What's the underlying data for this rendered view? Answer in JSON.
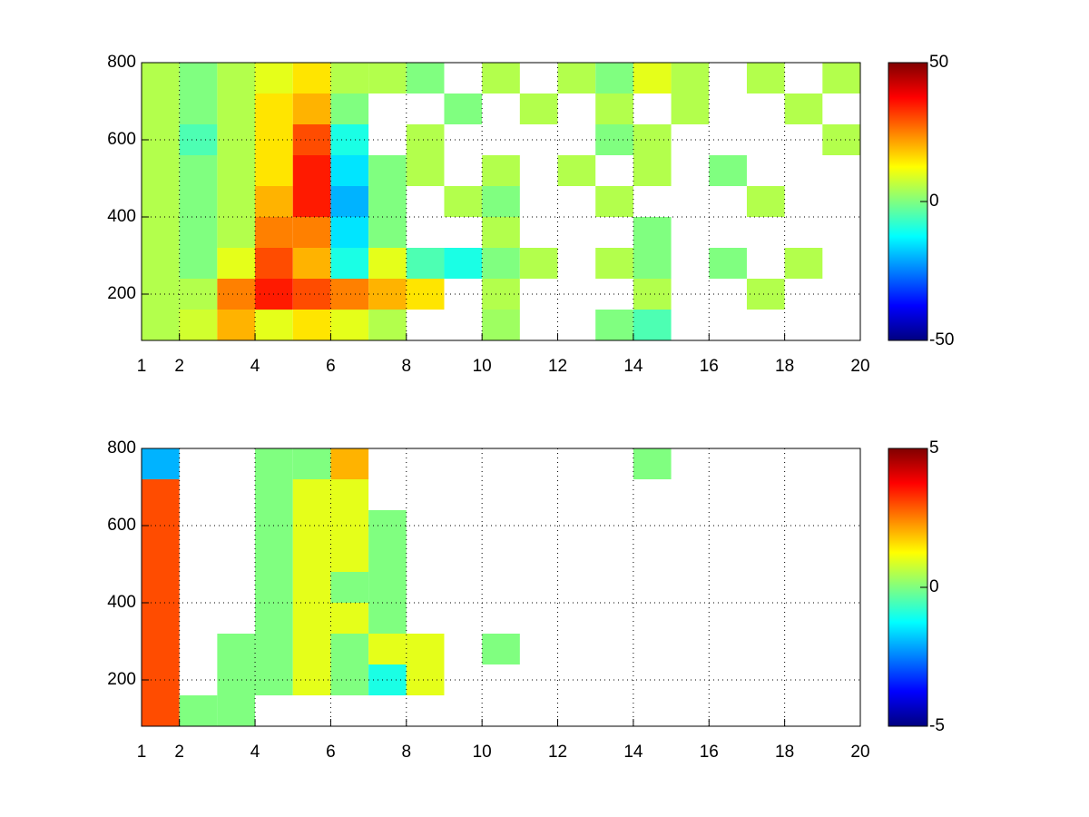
{
  "chart_data": [
    {
      "type": "heatmap",
      "xbins": [
        1,
        2,
        3,
        4,
        5,
        6,
        7,
        8,
        9,
        10,
        11,
        12,
        13,
        14,
        15,
        16,
        17,
        18,
        19,
        20
      ],
      "ybins": [
        80,
        160,
        240,
        320,
        400,
        480,
        560,
        640,
        720,
        800
      ],
      "values": [
        [
          5,
          8,
          20,
          10,
          15,
          10,
          5,
          null,
          null,
          3,
          null,
          null,
          0,
          -5,
          null,
          null,
          null,
          null,
          null
        ],
        [
          5,
          5,
          25,
          35,
          30,
          25,
          20,
          15,
          null,
          5,
          null,
          null,
          null,
          5,
          null,
          null,
          5,
          null,
          null
        ],
        [
          5,
          0,
          10,
          30,
          20,
          -10,
          10,
          -5,
          -10,
          0,
          5,
          null,
          5,
          0,
          null,
          0,
          null,
          5,
          null
        ],
        [
          5,
          0,
          5,
          25,
          25,
          -15,
          0,
          null,
          null,
          5,
          null,
          null,
          null,
          0,
          null,
          null,
          null,
          null,
          null
        ],
        [
          5,
          0,
          5,
          20,
          35,
          -20,
          0,
          null,
          5,
          0,
          null,
          null,
          5,
          null,
          null,
          null,
          5,
          null,
          null
        ],
        [
          5,
          0,
          5,
          15,
          35,
          -15,
          0,
          5,
          null,
          5,
          null,
          5,
          null,
          5,
          null,
          0,
          null,
          null,
          null
        ],
        [
          5,
          -5,
          5,
          15,
          30,
          -10,
          null,
          5,
          null,
          null,
          null,
          null,
          0,
          5,
          null,
          null,
          null,
          null,
          5
        ],
        [
          5,
          0,
          5,
          15,
          20,
          0,
          null,
          null,
          0,
          null,
          5,
          null,
          5,
          null,
          5,
          null,
          null,
          5,
          null
        ],
        [
          5,
          0,
          5,
          10,
          15,
          5,
          5,
          0,
          null,
          5,
          null,
          5,
          0,
          10,
          5,
          null,
          5,
          null,
          5
        ]
      ],
      "xlim": [
        1,
        20
      ],
      "xticks": [
        1,
        2,
        4,
        6,
        8,
        10,
        12,
        14,
        16,
        18,
        20
      ],
      "ylim": [
        80,
        800
      ],
      "yticks": [
        200,
        400,
        600,
        800
      ],
      "clim": [
        -50,
        50
      ],
      "cticks": [
        -50,
        0,
        50
      ],
      "colormap": "jet",
      "grid": true
    },
    {
      "type": "heatmap",
      "xbins": [
        1,
        2,
        3,
        4,
        5,
        6,
        7,
        8,
        9,
        10,
        11,
        12,
        13,
        14,
        15,
        16,
        17,
        18,
        19,
        20
      ],
      "ybins": [
        80,
        160,
        240,
        320,
        400,
        480,
        560,
        640,
        720,
        800
      ],
      "values": [
        [
          3,
          0,
          0,
          null,
          null,
          null,
          null,
          null,
          null,
          null,
          null,
          null,
          null,
          null,
          null,
          null,
          null,
          null,
          null
        ],
        [
          3,
          null,
          0,
          0,
          1,
          0,
          -1,
          1,
          null,
          null,
          null,
          null,
          null,
          null,
          null,
          null,
          null,
          null,
          null
        ],
        [
          3,
          null,
          0,
          0,
          1,
          0,
          1,
          1,
          null,
          0,
          null,
          null,
          null,
          null,
          null,
          null,
          null,
          null,
          null
        ],
        [
          3,
          null,
          null,
          0,
          1,
          1,
          0,
          null,
          null,
          null,
          null,
          null,
          null,
          null,
          null,
          null,
          null,
          null,
          null
        ],
        [
          3,
          null,
          null,
          0,
          1,
          0,
          0,
          null,
          null,
          null,
          null,
          null,
          null,
          null,
          null,
          null,
          null,
          null,
          null
        ],
        [
          3,
          null,
          null,
          0,
          1,
          1,
          0,
          null,
          null,
          null,
          null,
          null,
          null,
          null,
          null,
          null,
          null,
          null,
          null
        ],
        [
          3,
          null,
          null,
          0,
          1,
          1,
          0,
          null,
          null,
          null,
          null,
          null,
          null,
          null,
          null,
          null,
          null,
          null,
          null
        ],
        [
          3,
          null,
          null,
          0,
          1,
          1,
          null,
          null,
          null,
          null,
          null,
          null,
          null,
          null,
          null,
          null,
          null,
          null,
          null
        ],
        [
          -2,
          null,
          null,
          0,
          0,
          2,
          null,
          null,
          null,
          null,
          null,
          null,
          null,
          0,
          null,
          null,
          null,
          null,
          null
        ]
      ],
      "xlim": [
        1,
        20
      ],
      "xticks": [
        1,
        2,
        4,
        6,
        8,
        10,
        12,
        14,
        16,
        18,
        20
      ],
      "ylim": [
        80,
        800
      ],
      "yticks": [
        200,
        400,
        600,
        800
      ],
      "clim": [
        -5,
        5
      ],
      "cticks": [
        -5,
        0,
        5
      ],
      "colormap": "jet",
      "grid": true
    }
  ]
}
